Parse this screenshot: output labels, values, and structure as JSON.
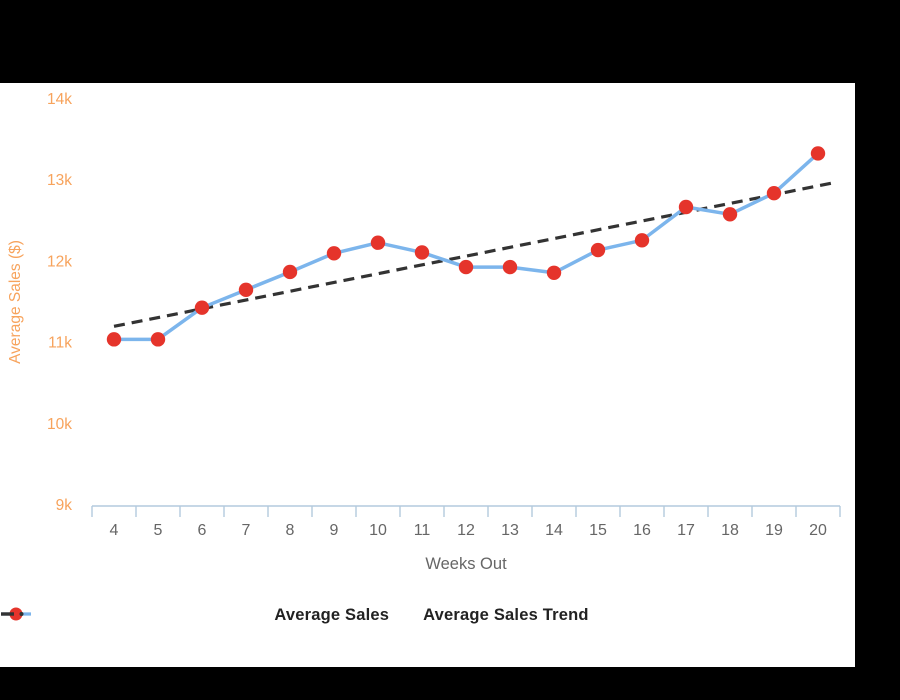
{
  "colors": {
    "background": "#000000",
    "panel": "#ffffff",
    "axis": "#b3cadd",
    "x_label": "#666666",
    "y_label": "#f7a35c",
    "legend_text": "#222222",
    "series_blue": "#7cb5ec",
    "marker_red": "#e5342b",
    "trend": "#333333"
  },
  "chart_data": {
    "type": "line",
    "title": "",
    "xlabel": "Weeks Out",
    "ylabel": "Average Sales ($)",
    "categories": [
      "4",
      "5",
      "6",
      "7",
      "8",
      "9",
      "10",
      "11",
      "12",
      "13",
      "14",
      "15",
      "16",
      "17",
      "18",
      "19",
      "20"
    ],
    "y_ticks": [
      "14k",
      "13k",
      "12k",
      "11k",
      "10k",
      "9k"
    ],
    "ylim": [
      9000,
      14000
    ],
    "grid": false,
    "legend_position": "bottom",
    "series": [
      {
        "name": "Average Sales",
        "style": "solid-line-with-markers",
        "color": "#7cb5ec",
        "marker_color": "#e5342b",
        "values": [
          11040,
          11040,
          11430,
          11650,
          11870,
          12100,
          12230,
          12110,
          11930,
          11930,
          11860,
          12140,
          12260,
          12670,
          12580,
          12840,
          13330
        ]
      },
      {
        "name": "Average Sales Trend",
        "style": "dashed-line",
        "color": "#333333",
        "trend_start": 11200,
        "trend_end": 12930
      }
    ]
  },
  "legend": {
    "items": [
      {
        "label": "Average Sales"
      },
      {
        "label": "Average Sales Trend"
      }
    ]
  }
}
